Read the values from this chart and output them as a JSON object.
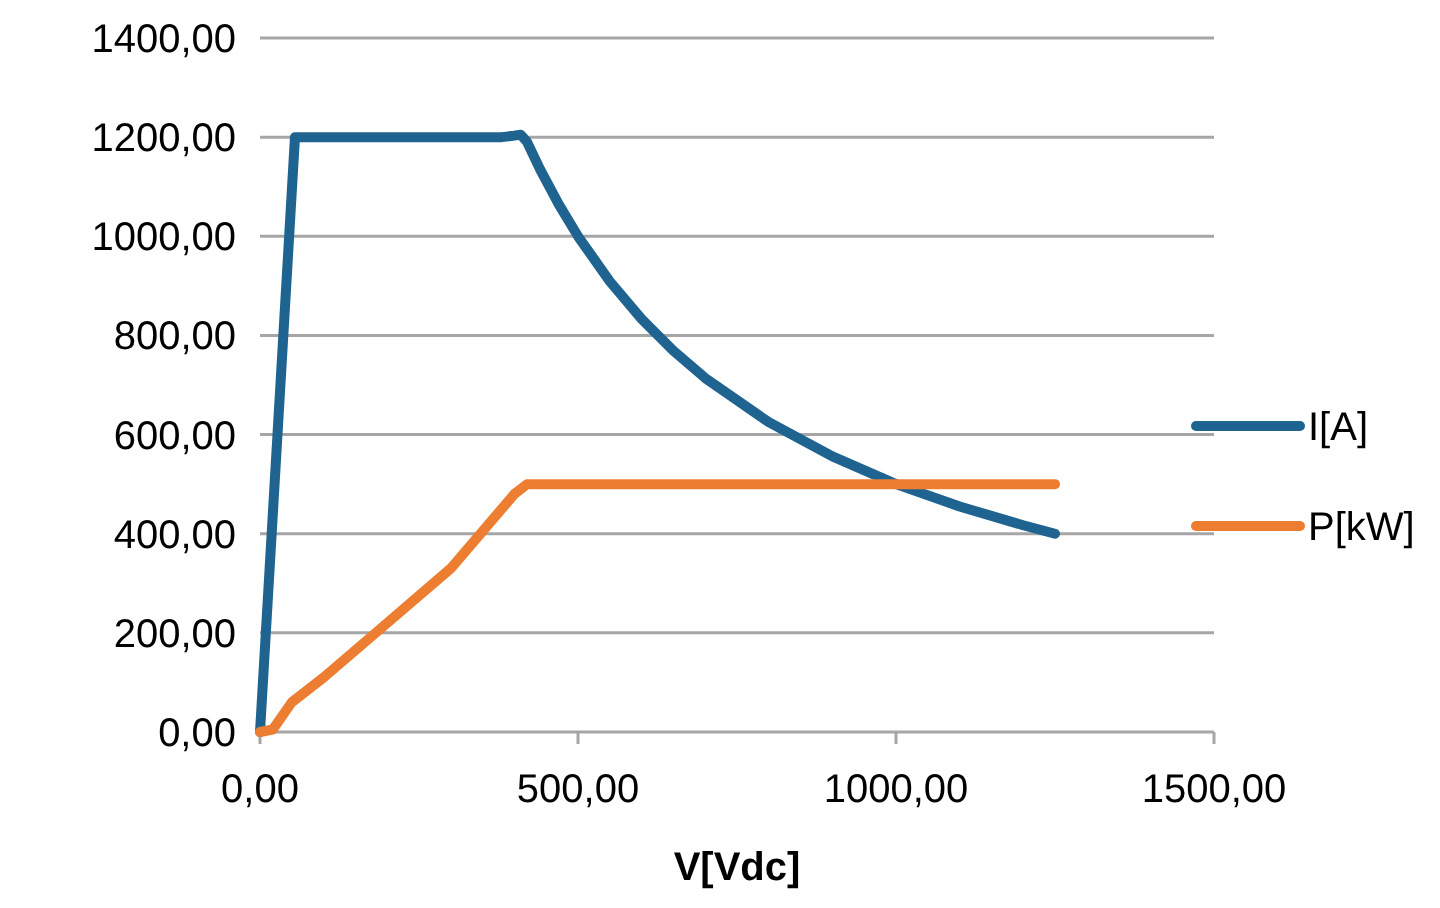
{
  "chart_data": {
    "type": "line",
    "xlabel": "V[Vdc]",
    "xlim": [
      0,
      1500
    ],
    "xticks": [
      {
        "value": 0,
        "label": "0,00"
      },
      {
        "value": 500,
        "label": "500,00"
      },
      {
        "value": 1000,
        "label": "1000,00"
      },
      {
        "value": 1500,
        "label": "1500,00"
      }
    ],
    "ylim": [
      0,
      1400
    ],
    "yticks": [
      {
        "value": 0,
        "label": "0,00"
      },
      {
        "value": 200,
        "label": "200,00"
      },
      {
        "value": 400,
        "label": "400,00"
      },
      {
        "value": 600,
        "label": "600,00"
      },
      {
        "value": 800,
        "label": "800,00"
      },
      {
        "value": 1000,
        "label": "1000,00"
      },
      {
        "value": 1200,
        "label": "1200,00"
      },
      {
        "value": 1400,
        "label": "1400,00"
      }
    ],
    "grid": "y",
    "legend": "right",
    "line_style": "solid",
    "series": [
      {
        "name": "I[A]",
        "color": "#1f6391",
        "x": [
          0,
          55,
          100,
          200,
          300,
          380,
          400,
          410,
          420,
          440,
          470,
          500,
          550,
          600,
          650,
          700,
          800,
          900,
          1000,
          1100,
          1200,
          1250
        ],
        "values": [
          0,
          1200,
          1200,
          1200,
          1200,
          1200,
          1203,
          1205,
          1190,
          1136,
          1064,
          1000,
          909,
          833,
          769,
          714,
          625,
          556,
          500,
          455,
          417,
          400
        ]
      },
      {
        "name": "P[kW]",
        "color": "#ed7d31",
        "x": [
          0,
          20,
          50,
          100,
          200,
          300,
          400,
          420,
          440,
          600,
          800,
          1000,
          1250
        ],
        "values": [
          0,
          5,
          60,
          110,
          220,
          330,
          480,
          500,
          500,
          500,
          500,
          500,
          500
        ]
      }
    ]
  }
}
